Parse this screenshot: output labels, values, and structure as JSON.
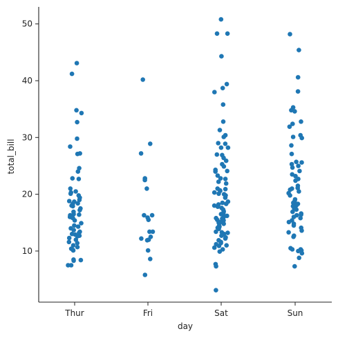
{
  "chart_data": {
    "type": "scatter",
    "subtype": "strip",
    "title": "",
    "xlabel": "day",
    "ylabel": "total_bill",
    "categories": [
      "Thur",
      "Fri",
      "Sat",
      "Sun"
    ],
    "ylim": [
      1.0,
      53.0
    ],
    "yticks": [
      10,
      20,
      30,
      40,
      50
    ],
    "grid": false,
    "legend": "none",
    "point_color": "#1f77b4",
    "series": [
      {
        "category": "Thur",
        "values": [
          43.1,
          41.2,
          34.8,
          34.3,
          32.7,
          29.8,
          28.4,
          27.2,
          27.1,
          24.6,
          24.0,
          22.8,
          22.7,
          21.0,
          20.5,
          20.3,
          20.1,
          19.8,
          19.4,
          19.0,
          18.8,
          18.7,
          18.4,
          18.3,
          18.0,
          17.9,
          17.5,
          17.2,
          16.9,
          16.5,
          16.4,
          16.3,
          16.0,
          15.9,
          15.8,
          15.4,
          14.9,
          14.5,
          14.3,
          14.0,
          13.7,
          13.4,
          13.2,
          13.0,
          12.9,
          12.7,
          12.6,
          12.3,
          12.0,
          11.6,
          11.4,
          11.0,
          10.7,
          10.4,
          10.2,
          10.1,
          8.5,
          8.4,
          8.3,
          7.5,
          7.5
        ]
      },
      {
        "category": "Fri",
        "values": [
          40.2,
          28.9,
          27.2,
          22.8,
          22.5,
          21.0,
          16.3,
          16.3,
          15.9,
          15.5,
          13.4,
          13.4,
          12.5,
          12.2,
          12.0,
          11.9,
          10.1,
          8.6,
          5.8
        ]
      },
      {
        "category": "Sat",
        "values": [
          50.8,
          48.3,
          48.3,
          44.3,
          39.4,
          38.7,
          38.0,
          35.8,
          32.8,
          31.3,
          30.4,
          30.1,
          29.0,
          28.9,
          28.2,
          28.2,
          27.0,
          26.9,
          26.4,
          25.9,
          25.3,
          24.9,
          24.3,
          24.1,
          24.0,
          23.3,
          22.8,
          22.7,
          22.2,
          21.9,
          21.0,
          20.9,
          20.7,
          20.6,
          20.3,
          20.1,
          20.0,
          19.8,
          19.4,
          18.7,
          18.5,
          18.3,
          18.2,
          18.0,
          17.8,
          17.6,
          17.3,
          17.0,
          16.8,
          16.5,
          16.4,
          16.2,
          16.0,
          15.8,
          15.7,
          15.5,
          15.4,
          15.1,
          15.0,
          14.8,
          14.5,
          14.3,
          14.1,
          13.9,
          13.4,
          13.3,
          13.2,
          13.0,
          12.7,
          12.4,
          12.2,
          11.9,
          11.6,
          11.4,
          11.2,
          11.0,
          10.9,
          10.6,
          10.3,
          9.9,
          7.7,
          7.3,
          3.1
        ]
      },
      {
        "category": "Sun",
        "values": [
          48.2,
          45.4,
          40.6,
          38.1,
          35.3,
          34.8,
          34.6,
          32.8,
          32.4,
          31.9,
          30.4,
          30.1,
          29.9,
          28.6,
          27.1,
          25.7,
          25.6,
          25.3,
          25.0,
          24.7,
          24.1,
          23.5,
          23.2,
          22.7,
          22.4,
          21.5,
          21.1,
          21.0,
          20.8,
          20.5,
          20.2,
          19.8,
          19.1,
          18.8,
          18.5,
          18.3,
          18.2,
          18.0,
          17.9,
          17.8,
          17.5,
          17.3,
          16.9,
          16.6,
          16.4,
          16.3,
          16.0,
          15.8,
          15.4,
          15.1,
          14.8,
          14.5,
          14.1,
          13.6,
          13.3,
          12.7,
          12.5,
          10.5,
          10.3,
          10.3,
          10.1,
          10.0,
          9.6,
          8.8,
          7.3
        ]
      }
    ]
  }
}
